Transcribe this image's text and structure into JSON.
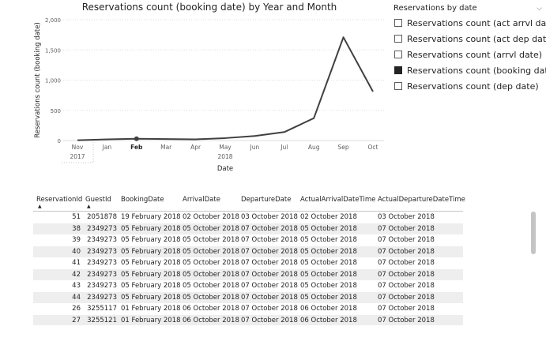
{
  "chart": {
    "title": "Reservations count (booking date) by Year and Month"
  },
  "chart_data": {
    "type": "line",
    "title": "Reservations count (booking date) by Year and Month",
    "xlabel": "Date",
    "ylabel": "Reservations count (booking date)",
    "x": [
      "Nov",
      "Jan",
      "Feb",
      "Mar",
      "Apr",
      "May",
      "Jun",
      "Jul",
      "Aug",
      "Sep",
      "Oct"
    ],
    "x_year_labels": [
      {
        "label": "2017",
        "month": "Nov"
      },
      {
        "label": "2018",
        "month": "May"
      }
    ],
    "highlighted_tick": "Feb",
    "series": [
      {
        "name": "Reservations count (booking date)",
        "values": [
          5,
          20,
          30,
          25,
          20,
          40,
          75,
          140,
          370,
          1710,
          810
        ],
        "color": "#404040"
      }
    ],
    "ylim": [
      0,
      2000
    ],
    "yticks": [
      "0",
      "500",
      "1,000",
      "1,500",
      "2,000"
    ],
    "grid": true,
    "marker": {
      "month": "Feb",
      "value": 30
    }
  },
  "legend": {
    "title": "Reservations by date",
    "chevron": "chevron-down-icon",
    "items": [
      {
        "label": "Reservations count (act arrvl date)",
        "checked": false
      },
      {
        "label": "Reservations count (act dep date)",
        "checked": false
      },
      {
        "label": "Reservations count (arrvl date)",
        "checked": false
      },
      {
        "label": "Reservations count (booking date)",
        "checked": true
      },
      {
        "label": "Reservations count (dep date)",
        "checked": false
      }
    ]
  },
  "table": {
    "columns": [
      "ReservationId",
      "GuestId",
      "BookingDate",
      "ArrivalDate",
      "DepartureDate",
      "ActualArrivalDateTime",
      "ActualDepartureDateTime"
    ],
    "sorted_columns": [
      "ReservationId",
      "GuestId"
    ],
    "rows": [
      [
        "51",
        "2051878",
        "19 February 2018",
        "02 October 2018",
        "03 October 2018",
        "02 October 2018",
        "03 October 2018"
      ],
      [
        "38",
        "2349273",
        "05 February 2018",
        "05 October 2018",
        "07 October 2018",
        "05 October 2018",
        "07 October 2018"
      ],
      [
        "39",
        "2349273",
        "05 February 2018",
        "05 October 2018",
        "07 October 2018",
        "05 October 2018",
        "07 October 2018"
      ],
      [
        "40",
        "2349273",
        "05 February 2018",
        "05 October 2018",
        "07 October 2018",
        "05 October 2018",
        "07 October 2018"
      ],
      [
        "41",
        "2349273",
        "05 February 2018",
        "05 October 2018",
        "07 October 2018",
        "05 October 2018",
        "07 October 2018"
      ],
      [
        "42",
        "2349273",
        "05 February 2018",
        "05 October 2018",
        "07 October 2018",
        "05 October 2018",
        "07 October 2018"
      ],
      [
        "43",
        "2349273",
        "05 February 2018",
        "05 October 2018",
        "07 October 2018",
        "05 October 2018",
        "07 October 2018"
      ],
      [
        "44",
        "2349273",
        "05 February 2018",
        "05 October 2018",
        "07 October 2018",
        "05 October 2018",
        "07 October 2018"
      ],
      [
        "26",
        "3255117",
        "01 February 2018",
        "06 October 2018",
        "07 October 2018",
        "06 October 2018",
        "07 October 2018"
      ],
      [
        "27",
        "3255121",
        "01 February 2018",
        "06 October 2018",
        "07 October 2018",
        "06 October 2018",
        "07 October 2018"
      ]
    ]
  }
}
